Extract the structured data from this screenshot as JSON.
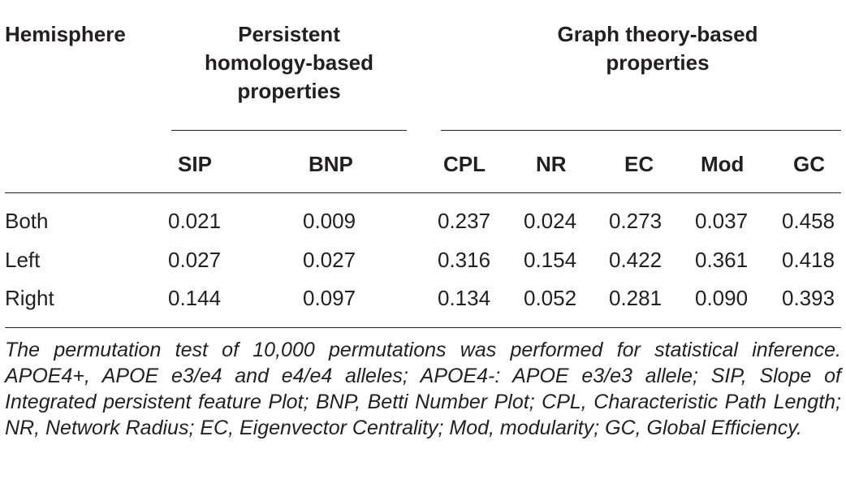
{
  "table": {
    "header": {
      "hemisphere": "Hemisphere",
      "group_ph": [
        "Persistent",
        "homology-based",
        "properties"
      ],
      "group_gt": [
        "Graph theory-based",
        "properties"
      ]
    },
    "columns": [
      "SIP",
      "BNP",
      "CPL",
      "NR",
      "EC",
      "Mod",
      "GC"
    ],
    "rows": [
      {
        "label": "Both",
        "values": [
          "0.021",
          "0.009",
          "0.237",
          "0.024",
          "0.273",
          "0.037",
          "0.458"
        ]
      },
      {
        "label": "Left",
        "values": [
          "0.027",
          "0.027",
          "0.316",
          "0.154",
          "0.422",
          "0.361",
          "0.418"
        ]
      },
      {
        "label": "Right",
        "values": [
          "0.144",
          "0.097",
          "0.134",
          "0.052",
          "0.281",
          "0.090",
          "0.393"
        ]
      }
    ],
    "footnote": "The permutation test of 10,000 permutations was performed for statistical inference. APOE4+, APOE e3/e4 and e4/e4 alleles; APOE4-: APOE e3/e3 allele; SIP, Slope of Integrated persistent feature Plot; BNP, Betti Number Plot; CPL, Characteristic Path Length; NR, Network Radius; EC, Eigenvector Centrality; Mod, modularity; GC, Global Efficiency."
  }
}
